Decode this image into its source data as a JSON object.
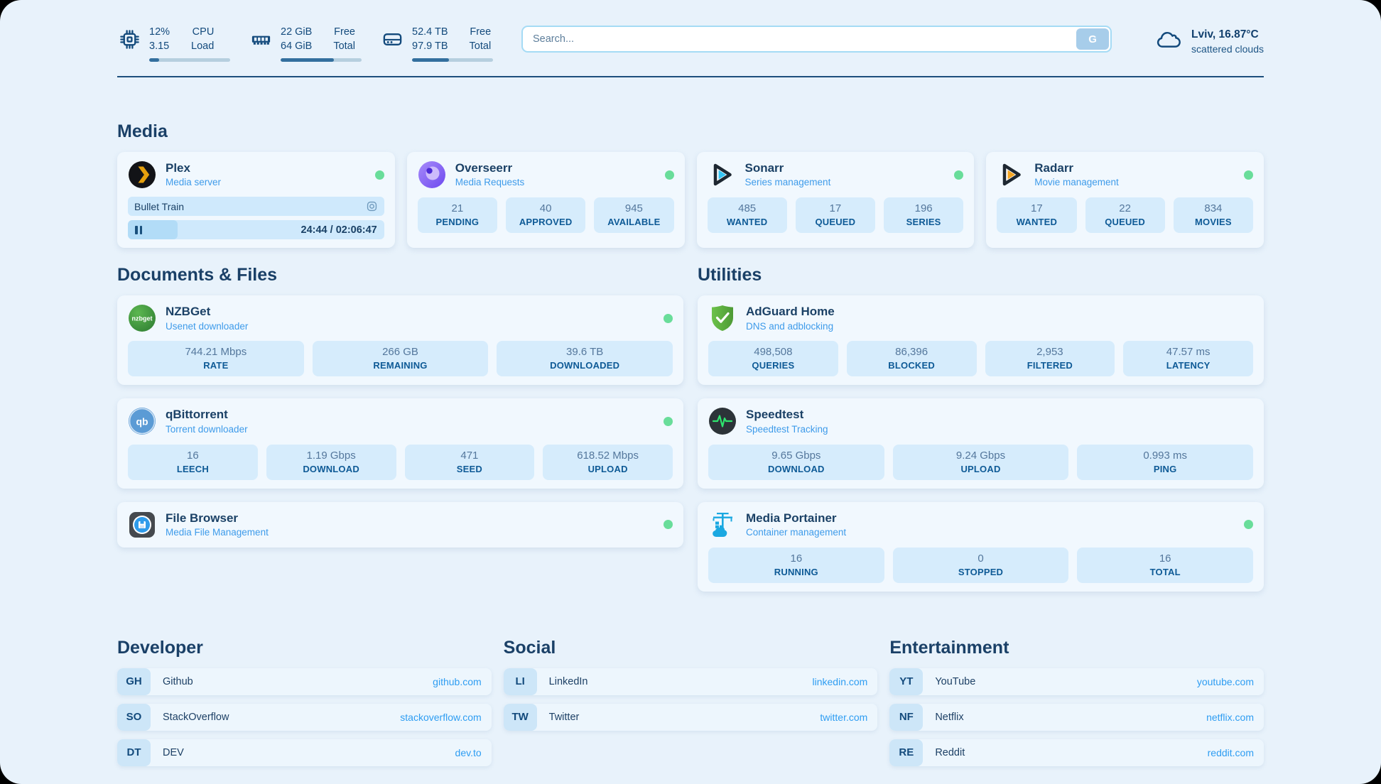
{
  "colors": {
    "status_green": "#69dd9a",
    "link_blue": "#2e9df2",
    "subtitle_blue": "#3e9bea",
    "heading_navy": "#1a4067",
    "topbar_bar_fill": "#336f9e",
    "plex_yellow": "#e5a00d",
    "sonarr_blue": "#35c5f4",
    "radarr_orange": "#f5a623",
    "adguard_green": "#68bd49",
    "nzbget_green": "#3b9e3f",
    "qbittorrent_blue": "#5b9bd5",
    "portainer_blue": "#1ba8e1",
    "speedtest_pulse": "#2ee56e"
  },
  "topbar": {
    "cpu": {
      "line1": "12%",
      "line2": "3.15",
      "label1": "CPU",
      "label2": "Load",
      "bar_pct": 12
    },
    "ram": {
      "line1": "22 GiB",
      "line2": "64 GiB",
      "label1": "Free",
      "label2": "Total",
      "bar_pct": 66
    },
    "disk": {
      "line1": "52.4 TB",
      "line2": "97.9 TB",
      "label1": "Free",
      "label2": "Total",
      "bar_pct": 46
    },
    "search": {
      "placeholder": "Search...",
      "button_label": "G"
    },
    "weather": {
      "location": "Lviv, 16.87°C",
      "condition": "scattered clouds"
    }
  },
  "sections": {
    "media": "Media",
    "documents": "Documents & Files",
    "utilities": "Utilities",
    "developer": "Developer",
    "social": "Social",
    "entertainment": "Entertainment"
  },
  "apps": {
    "plex": {
      "title": "Plex",
      "subtitle": "Media server",
      "now_playing": "Bullet Train",
      "time": "24:44 / 02:06:47",
      "progress_pct": 19.5
    },
    "overseerr": {
      "title": "Overseerr",
      "subtitle": "Media Requests",
      "stats": [
        {
          "value": "21",
          "label": "PENDING"
        },
        {
          "value": "40",
          "label": "APPROVED"
        },
        {
          "value": "945",
          "label": "AVAILABLE"
        }
      ]
    },
    "sonarr": {
      "title": "Sonarr",
      "subtitle": "Series management",
      "stats": [
        {
          "value": "485",
          "label": "WANTED"
        },
        {
          "value": "17",
          "label": "QUEUED"
        },
        {
          "value": "196",
          "label": "SERIES"
        }
      ]
    },
    "radarr": {
      "title": "Radarr",
      "subtitle": "Movie management",
      "stats": [
        {
          "value": "17",
          "label": "WANTED"
        },
        {
          "value": "22",
          "label": "QUEUED"
        },
        {
          "value": "834",
          "label": "MOVIES"
        }
      ]
    },
    "nzbget": {
      "title": "NZBGet",
      "subtitle": "Usenet downloader",
      "stats": [
        {
          "value": "744.21 Mbps",
          "label": "RATE"
        },
        {
          "value": "266 GB",
          "label": "REMAINING"
        },
        {
          "value": "39.6 TB",
          "label": "DOWNLOADED"
        }
      ]
    },
    "qbittorrent": {
      "title": "qBittorrent",
      "subtitle": "Torrent downloader",
      "stats": [
        {
          "value": "16",
          "label": "LEECH"
        },
        {
          "value": "1.19 Gbps",
          "label": "DOWNLOAD"
        },
        {
          "value": "471",
          "label": "SEED"
        },
        {
          "value": "618.52 Mbps",
          "label": "UPLOAD"
        }
      ]
    },
    "filebrowser": {
      "title": "File Browser",
      "subtitle": "Media File Management"
    },
    "adguard": {
      "title": "AdGuard Home",
      "subtitle": "DNS and adblocking",
      "stats": [
        {
          "value": "498,508",
          "label": "QUERIES"
        },
        {
          "value": "86,396",
          "label": "BLOCKED"
        },
        {
          "value": "2,953",
          "label": "FILTERED"
        },
        {
          "value": "47.57 ms",
          "label": "LATENCY"
        }
      ]
    },
    "speedtest": {
      "title": "Speedtest",
      "subtitle": "Speedtest Tracking",
      "stats": [
        {
          "value": "9.65 Gbps",
          "label": "DOWNLOAD"
        },
        {
          "value": "9.24 Gbps",
          "label": "UPLOAD"
        },
        {
          "value": "0.993 ms",
          "label": "PING"
        }
      ]
    },
    "portainer": {
      "title": "Media Portainer",
      "subtitle": "Container management",
      "stats": [
        {
          "value": "16",
          "label": "RUNNING"
        },
        {
          "value": "0",
          "label": "STOPPED"
        },
        {
          "value": "16",
          "label": "TOTAL"
        }
      ]
    }
  },
  "links": {
    "developer": [
      {
        "abbr": "GH",
        "name": "Github",
        "url": "github.com"
      },
      {
        "abbr": "SO",
        "name": "StackOverflow",
        "url": "stackoverflow.com"
      },
      {
        "abbr": "DT",
        "name": "DEV",
        "url": "dev.to"
      }
    ],
    "social": [
      {
        "abbr": "LI",
        "name": "LinkedIn",
        "url": "linkedin.com"
      },
      {
        "abbr": "TW",
        "name": "Twitter",
        "url": "twitter.com"
      }
    ],
    "entertainment": [
      {
        "abbr": "YT",
        "name": "YouTube",
        "url": "youtube.com"
      },
      {
        "abbr": "NF",
        "name": "Netflix",
        "url": "netflix.com"
      },
      {
        "abbr": "RE",
        "name": "Reddit",
        "url": "reddit.com"
      }
    ]
  }
}
